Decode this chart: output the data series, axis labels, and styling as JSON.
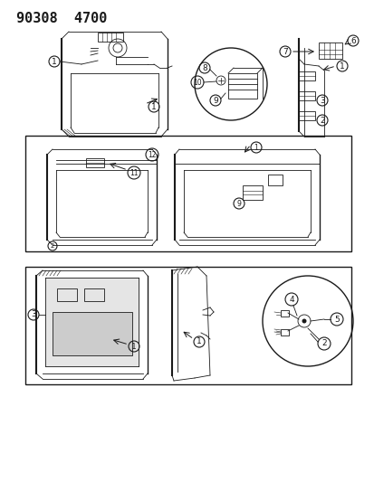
{
  "title": "90308  4700",
  "bg_color": "#ffffff",
  "line_color": "#1a1a1a",
  "figsize": [
    4.14,
    5.33
  ],
  "dpi": 100
}
